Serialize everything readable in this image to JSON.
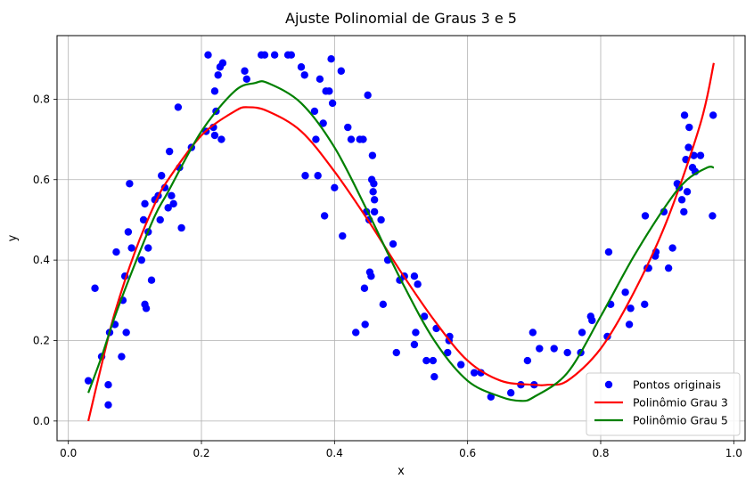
{
  "chart_data": {
    "type": "scatter",
    "title": "Ajuste Polinomial de Graus 3 e 5",
    "xlabel": "x",
    "ylabel": "y",
    "xlim": [
      -0.017,
      1.017
    ],
    "ylim": [
      -0.049,
      0.958
    ],
    "xticks": [
      0.0,
      0.2,
      0.4,
      0.6,
      0.8,
      1.0
    ],
    "xtick_labels": [
      "0.0",
      "0.2",
      "0.4",
      "0.6",
      "0.8",
      "1.0"
    ],
    "yticks": [
      0.0,
      0.2,
      0.4,
      0.6,
      0.8
    ],
    "ytick_labels": [
      "0.0",
      "0.2",
      "0.4",
      "0.6",
      "0.8"
    ],
    "grid": true,
    "legend_position": "lower-right",
    "series": [
      {
        "name": "Pontos originais",
        "kind": "points",
        "color": "#0000ff",
        "points": [
          [
            0.03,
            0.1
          ],
          [
            0.04,
            0.33
          ],
          [
            0.05,
            0.16
          ],
          [
            0.06,
            0.09
          ],
          [
            0.06,
            0.04
          ],
          [
            0.062,
            0.22
          ],
          [
            0.07,
            0.24
          ],
          [
            0.072,
            0.42
          ],
          [
            0.08,
            0.16
          ],
          [
            0.082,
            0.3
          ],
          [
            0.085,
            0.36
          ],
          [
            0.087,
            0.22
          ],
          [
            0.09,
            0.47
          ],
          [
            0.092,
            0.59
          ],
          [
            0.095,
            0.43
          ],
          [
            0.11,
            0.4
          ],
          [
            0.113,
            0.5
          ],
          [
            0.115,
            0.54
          ],
          [
            0.115,
            0.29
          ],
          [
            0.117,
            0.28
          ],
          [
            0.12,
            0.47
          ],
          [
            0.12,
            0.43
          ],
          [
            0.125,
            0.35
          ],
          [
            0.13,
            0.55
          ],
          [
            0.135,
            0.56
          ],
          [
            0.138,
            0.5
          ],
          [
            0.14,
            0.61
          ],
          [
            0.145,
            0.58
          ],
          [
            0.15,
            0.53
          ],
          [
            0.152,
            0.67
          ],
          [
            0.155,
            0.56
          ],
          [
            0.158,
            0.54
          ],
          [
            0.165,
            0.78
          ],
          [
            0.167,
            0.63
          ],
          [
            0.17,
            0.48
          ],
          [
            0.185,
            0.68
          ],
          [
            0.207,
            0.72
          ],
          [
            0.21,
            0.91
          ],
          [
            0.218,
            0.73
          ],
          [
            0.22,
            0.71
          ],
          [
            0.22,
            0.82
          ],
          [
            0.222,
            0.77
          ],
          [
            0.225,
            0.86
          ],
          [
            0.228,
            0.88
          ],
          [
            0.23,
            0.7
          ],
          [
            0.232,
            0.89
          ],
          [
            0.265,
            0.87
          ],
          [
            0.268,
            0.85
          ],
          [
            0.29,
            0.91
          ],
          [
            0.295,
            0.91
          ],
          [
            0.31,
            0.91
          ],
          [
            0.33,
            0.91
          ],
          [
            0.335,
            0.91
          ],
          [
            0.35,
            0.88
          ],
          [
            0.355,
            0.86
          ],
          [
            0.356,
            0.61
          ],
          [
            0.37,
            0.77
          ],
          [
            0.372,
            0.7
          ],
          [
            0.375,
            0.61
          ],
          [
            0.378,
            0.85
          ],
          [
            0.383,
            0.74
          ],
          [
            0.385,
            0.51
          ],
          [
            0.387,
            0.82
          ],
          [
            0.392,
            0.82
          ],
          [
            0.395,
            0.9
          ],
          [
            0.397,
            0.79
          ],
          [
            0.4,
            0.58
          ],
          [
            0.41,
            0.87
          ],
          [
            0.412,
            0.46
          ],
          [
            0.42,
            0.73
          ],
          [
            0.425,
            0.7
          ],
          [
            0.432,
            0.22
          ],
          [
            0.438,
            0.7
          ],
          [
            0.443,
            0.7
          ],
          [
            0.445,
            0.33
          ],
          [
            0.446,
            0.24
          ],
          [
            0.448,
            0.52
          ],
          [
            0.45,
            0.81
          ],
          [
            0.452,
            0.5
          ],
          [
            0.453,
            0.37
          ],
          [
            0.455,
            0.36
          ],
          [
            0.456,
            0.6
          ],
          [
            0.457,
            0.66
          ],
          [
            0.458,
            0.57
          ],
          [
            0.459,
            0.59
          ],
          [
            0.46,
            0.55
          ],
          [
            0.46,
            0.52
          ],
          [
            0.47,
            0.5
          ],
          [
            0.473,
            0.29
          ],
          [
            0.48,
            0.4
          ],
          [
            0.488,
            0.44
          ],
          [
            0.493,
            0.17
          ],
          [
            0.498,
            0.35
          ],
          [
            0.505,
            0.36
          ],
          [
            0.52,
            0.19
          ],
          [
            0.522,
            0.22
          ],
          [
            0.525,
            0.34
          ],
          [
            0.52,
            0.36
          ],
          [
            0.535,
            0.26
          ],
          [
            0.538,
            0.15
          ],
          [
            0.548,
            0.15
          ],
          [
            0.55,
            0.11
          ],
          [
            0.553,
            0.23
          ],
          [
            0.57,
            0.17
          ],
          [
            0.572,
            0.2
          ],
          [
            0.573,
            0.21
          ],
          [
            0.59,
            0.14
          ],
          [
            0.61,
            0.12
          ],
          [
            0.62,
            0.12
          ],
          [
            0.635,
            0.06
          ],
          [
            0.665,
            0.07
          ],
          [
            0.68,
            0.09
          ],
          [
            0.69,
            0.15
          ],
          [
            0.698,
            0.22
          ],
          [
            0.7,
            0.09
          ],
          [
            0.708,
            0.18
          ],
          [
            0.73,
            0.18
          ],
          [
            0.75,
            0.17
          ],
          [
            0.77,
            0.17
          ],
          [
            0.772,
            0.22
          ],
          [
            0.785,
            0.26
          ],
          [
            0.787,
            0.25
          ],
          [
            0.81,
            0.21
          ],
          [
            0.812,
            0.42
          ],
          [
            0.815,
            0.29
          ],
          [
            0.837,
            0.32
          ],
          [
            0.843,
            0.24
          ],
          [
            0.845,
            0.28
          ],
          [
            0.866,
            0.29
          ],
          [
            0.867,
            0.51
          ],
          [
            0.87,
            0.38
          ],
          [
            0.872,
            0.38
          ],
          [
            0.882,
            0.41
          ],
          [
            0.883,
            0.42
          ],
          [
            0.895,
            0.52
          ],
          [
            0.902,
            0.38
          ],
          [
            0.908,
            0.43
          ],
          [
            0.915,
            0.59
          ],
          [
            0.918,
            0.58
          ],
          [
            0.922,
            0.55
          ],
          [
            0.925,
            0.52
          ],
          [
            0.926,
            0.76
          ],
          [
            0.928,
            0.65
          ],
          [
            0.93,
            0.57
          ],
          [
            0.932,
            0.68
          ],
          [
            0.933,
            0.73
          ],
          [
            0.938,
            0.63
          ],
          [
            0.94,
            0.66
          ],
          [
            0.942,
            0.62
          ],
          [
            0.95,
            0.66
          ],
          [
            0.968,
            0.51
          ],
          [
            0.969,
            0.76
          ]
        ]
      },
      {
        "name": "Polinômio Grau 3",
        "kind": "line",
        "color": "#ff0000",
        "x": [
          0.03,
          0.05,
          0.07,
          0.1,
          0.13,
          0.15,
          0.2,
          0.25,
          0.27,
          0.3,
          0.35,
          0.4,
          0.45,
          0.5,
          0.55,
          0.6,
          0.65,
          0.7,
          0.72,
          0.75,
          0.8,
          0.85,
          0.9,
          0.95,
          0.97
        ],
        "y": [
          0.0,
          0.14,
          0.27,
          0.42,
          0.54,
          0.6,
          0.71,
          0.77,
          0.78,
          0.77,
          0.72,
          0.62,
          0.5,
          0.37,
          0.25,
          0.15,
          0.1,
          0.09,
          0.09,
          0.1,
          0.18,
          0.32,
          0.5,
          0.74,
          0.89
        ]
      },
      {
        "name": "Polinômio Grau 5",
        "kind": "line",
        "color": "#008000",
        "x": [
          0.03,
          0.05,
          0.07,
          0.1,
          0.13,
          0.15,
          0.2,
          0.25,
          0.28,
          0.3,
          0.35,
          0.4,
          0.45,
          0.5,
          0.55,
          0.6,
          0.65,
          0.68,
          0.7,
          0.75,
          0.8,
          0.85,
          0.9,
          0.93,
          0.96,
          0.97
        ],
        "y": [
          0.07,
          0.16,
          0.26,
          0.39,
          0.51,
          0.57,
          0.72,
          0.82,
          0.84,
          0.84,
          0.79,
          0.68,
          0.52,
          0.35,
          0.2,
          0.1,
          0.06,
          0.05,
          0.06,
          0.12,
          0.26,
          0.41,
          0.54,
          0.6,
          0.63,
          0.63
        ]
      }
    ]
  }
}
